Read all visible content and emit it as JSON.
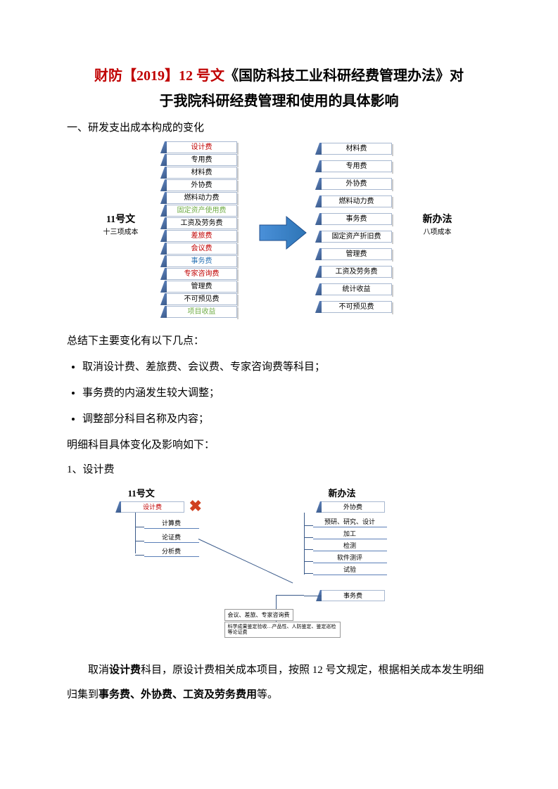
{
  "title": {
    "line1_a": "财防【2019】12 号文",
    "line1_b": "《国防科技工业科研经费管理办法》对",
    "line2": "于我院科研经费管理和使用的具体影响"
  },
  "section1": "一、研发支出成本构成的变化",
  "diagram1": {
    "left_label_bold": "11号文",
    "left_label_sub": "十三项成本",
    "right_label_bold": "新办法",
    "right_label_sub": "八项成本",
    "left_items": [
      {
        "text": "设计费",
        "color": "#c00000"
      },
      {
        "text": "专用费",
        "color": "#000"
      },
      {
        "text": "材料费",
        "color": "#000"
      },
      {
        "text": "外协费",
        "color": "#000"
      },
      {
        "text": "燃料动力费",
        "color": "#000"
      },
      {
        "text": "固定资产使用费",
        "color": "#70ad47"
      },
      {
        "text": "工资及劳务费",
        "color": "#000"
      },
      {
        "text": "差旅费",
        "color": "#c00000"
      },
      {
        "text": "会议费",
        "color": "#c00000"
      },
      {
        "text": "事务费",
        "color": "#2e75b6"
      },
      {
        "text": "专家咨询费",
        "color": "#c00000"
      },
      {
        "text": "管理费",
        "color": "#000"
      },
      {
        "text": "不可预见费",
        "color": "#000"
      },
      {
        "text": "项目收益",
        "color": "#70ad47"
      }
    ],
    "right_items": [
      {
        "text": "材料费",
        "color": "#000"
      },
      {
        "text": "专用费",
        "color": "#000"
      },
      {
        "text": "外协费",
        "color": "#000"
      },
      {
        "text": "燃料动力费",
        "color": "#000"
      },
      {
        "text": "事务费",
        "color": "#000"
      },
      {
        "text": "固定资产折旧费",
        "color": "#000"
      },
      {
        "text": "管理费",
        "color": "#000"
      },
      {
        "text": "工资及劳务费",
        "color": "#000"
      },
      {
        "text": "统计收益",
        "color": "#000"
      },
      {
        "text": "不可预见费",
        "color": "#000"
      }
    ],
    "arrow_color": "#2e75b6"
  },
  "summary_intro": "总结下主要变化有以下几点：",
  "bullets": [
    "取消设计费、差旅费、会议费、专家咨询费等科目；",
    "事务费的内涵发生较大调整；",
    "调整部分科目名称及内容；"
  ],
  "detail_heading": "明细科目具体变化及影响如下：",
  "item1_heading": "1、设计费",
  "diagram2": {
    "left_label": "11号文",
    "right_label": "新办法",
    "left_top": "设计费",
    "right_top": "外协费",
    "left_subs": [
      "计算费",
      "论证费",
      "分析费"
    ],
    "right_subs": [
      "预研、研究、设计",
      "加工",
      "检测",
      "软件测评",
      "试验"
    ],
    "right_bottom": "事务费",
    "note1": "会议、差旅、专家咨询费",
    "note2": "科学成果鉴定验收…产品性、人防鉴定、鉴定巡检等论证费"
  },
  "final_para": {
    "p1a": "取消",
    "p1b": "设计费",
    "p1c": "科目，原设计费相关成本项目，按照 12 号文规定，根据相关成",
    "p2a": "本发生明细归集到",
    "p2b": "事务费、外协费、工资及劳务费用",
    "p2c": "等。"
  }
}
